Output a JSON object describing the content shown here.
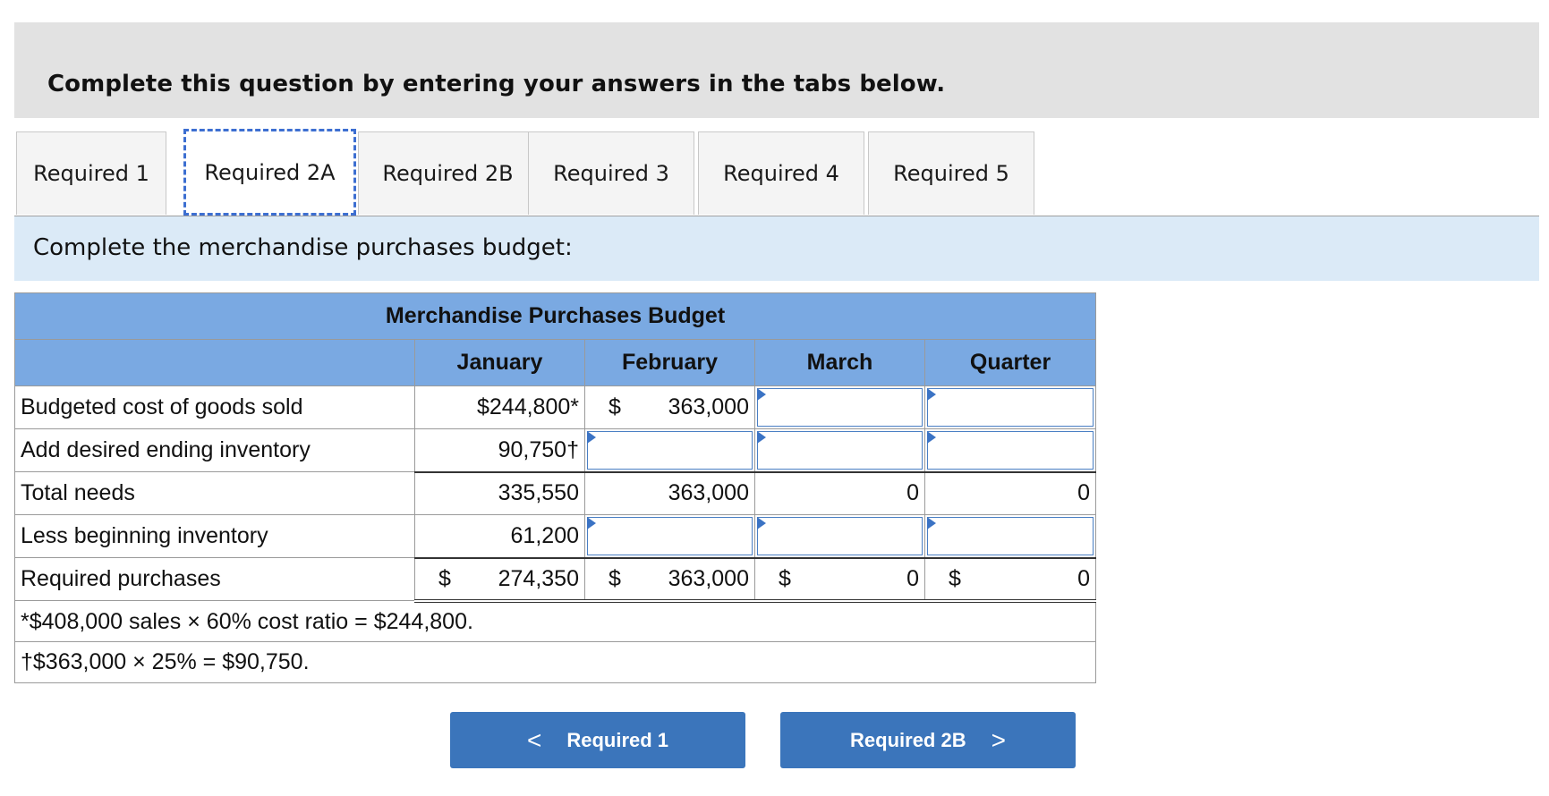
{
  "banner": {
    "text": "Complete this question by entering your answers in the tabs below."
  },
  "tabs": [
    {
      "label": "Required 1"
    },
    {
      "label": "Required 2A"
    },
    {
      "label": "Required 2B"
    },
    {
      "label": "Required 3"
    },
    {
      "label": "Required 4"
    },
    {
      "label": "Required 5"
    }
  ],
  "active_tab": "Required 2A",
  "prompt": "Complete the merchandise purchases budget:",
  "table": {
    "title": "Merchandise Purchases Budget",
    "columns": [
      "January",
      "February",
      "March",
      "Quarter"
    ],
    "rows": [
      {
        "label": "Budgeted cost of goods sold",
        "january": "$244,800*",
        "february_cur": "$",
        "february": "363,000",
        "march": "",
        "quarter": ""
      },
      {
        "label": "Add desired ending inventory",
        "january": "90,750†",
        "february": "",
        "march": "",
        "quarter": ""
      },
      {
        "label": "Total needs",
        "january": "335,550",
        "february": "363,000",
        "march": "0",
        "quarter": "0"
      },
      {
        "label": "Less beginning inventory",
        "january": "61,200",
        "february": "",
        "march": "",
        "quarter": ""
      },
      {
        "label": "Required purchases",
        "currency": "$",
        "january": "274,350",
        "february": "363,000",
        "march": "0",
        "quarter": "0"
      }
    ],
    "notes": [
      "*$408,000 sales × 60% cost ratio = $244,800.",
      "†$363,000 × 25% = $90,750."
    ]
  },
  "nav": {
    "prev_label": "Required 1",
    "next_label": "Required 2B",
    "prev_chevron": "<",
    "next_chevron": ">"
  },
  "colors": {
    "header_blue": "#7aa9e2",
    "button_blue": "#3b75bb",
    "prompt_bg": "#dbeaf7",
    "banner_bg": "#e2e2e2"
  }
}
